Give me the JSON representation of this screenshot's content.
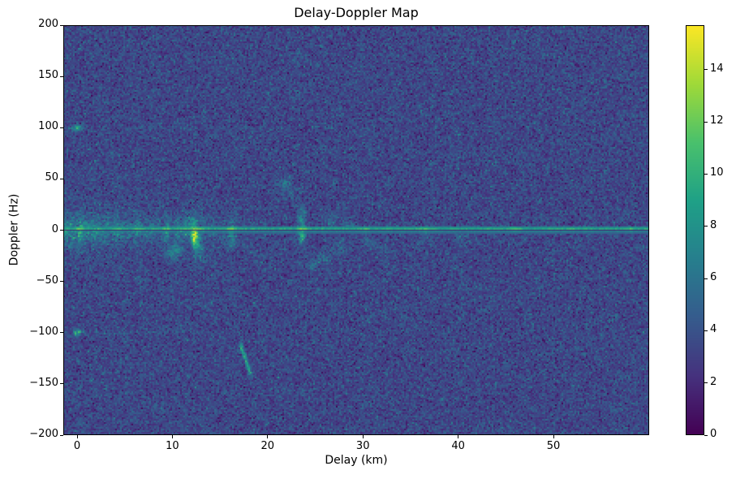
{
  "figure": {
    "background": "#ffffff"
  },
  "chart_data": {
    "type": "heatmap",
    "title": "Delay-Doppler Map",
    "xlabel": "Delay (km)",
    "ylabel": "Doppler (Hz)",
    "xlim": [
      -1.45,
      60.05
    ],
    "ylim": [
      -200,
      200
    ],
    "x_ticks": [
      {
        "v": 0,
        "label": "0"
      },
      {
        "v": 10,
        "label": "10"
      },
      {
        "v": 20,
        "label": "20"
      },
      {
        "v": 30,
        "label": "30"
      },
      {
        "v": 40,
        "label": "40"
      },
      {
        "v": 50,
        "label": "50"
      }
    ],
    "y_ticks": [
      {
        "v": 200,
        "label": "200"
      },
      {
        "v": 150,
        "label": "150"
      },
      {
        "v": 100,
        "label": "100"
      },
      {
        "v": 50,
        "label": "50"
      },
      {
        "v": 0,
        "label": "0"
      },
      {
        "v": -50,
        "label": "−50"
      },
      {
        "v": -100,
        "label": "−100"
      },
      {
        "v": -150,
        "label": "−150"
      },
      {
        "v": -200,
        "label": "−200"
      }
    ],
    "colormap": {
      "name": "viridis",
      "stops": [
        "#440154",
        "#46327e",
        "#365c8d",
        "#277f8e",
        "#1fa187",
        "#4ac16d",
        "#a0da39",
        "#fde725"
      ]
    },
    "colorbar": {
      "vmin": 0,
      "vmax": 15.7,
      "ticks": [
        {
          "v": 0,
          "label": "0"
        },
        {
          "v": 2,
          "label": "2"
        },
        {
          "v": 4,
          "label": "4"
        },
        {
          "v": 6,
          "label": "6"
        },
        {
          "v": 8,
          "label": "8"
        },
        {
          "v": 10,
          "label": "10"
        },
        {
          "v": 12,
          "label": "12"
        },
        {
          "v": 14,
          "label": "14"
        }
      ]
    },
    "grid": {
      "cols": 361,
      "rows": 253,
      "seed": 1337
    },
    "noise": {
      "mean": 3.35,
      "std": 1.0,
      "speckle_prob": 0.05,
      "speckle_max": 2.3
    },
    "features": {
      "band": {
        "delay_max": 20,
        "amp": 4.6,
        "delay_decay": 9,
        "doppler_sigma": 13,
        "power": 1.3
      },
      "streaks": {
        "delay_sigma": 0.22,
        "doppler_sigma": 11,
        "items": [
          {
            "d": 0.4,
            "amp": 2.5
          },
          {
            "d": 2.1,
            "amp": 1.8
          },
          {
            "d": 4.1,
            "amp": 2.2
          },
          {
            "d": 6.3,
            "amp": 2.8
          },
          {
            "d": 7.7,
            "amp": 1.6
          },
          {
            "d": 9.4,
            "amp": 3.2
          },
          {
            "d": 10.6,
            "amp": 2.6
          },
          {
            "d": 11.3,
            "amp": 3.0
          },
          {
            "d": 12.3,
            "amp": 4.5
          },
          {
            "d": 13.1,
            "amp": 2.6
          },
          {
            "d": 14.3,
            "amp": 1.6
          },
          {
            "d": 16.2,
            "amp": 3.6
          },
          {
            "d": 23.6,
            "amp": 2.8
          }
        ]
      },
      "zero_line": {
        "notch_halfwidth": 0.8,
        "notch_value": 1.2,
        "pos_width": 4.5,
        "pos_base": 9.5,
        "neg_width": 4.5,
        "neg_base": 7.0,
        "boost_spots": [
          [
            0.3,
            3.5
          ],
          [
            4.1,
            1.5
          ],
          [
            6.3,
            1.5
          ],
          [
            9.4,
            2.0
          ],
          [
            11.3,
            2.0
          ],
          [
            12.3,
            3.5
          ],
          [
            13.1,
            2.0
          ],
          [
            16.2,
            3.8
          ],
          [
            23.6,
            3.8
          ],
          [
            30.2,
            1.5
          ],
          [
            36.5,
            1.5
          ],
          [
            45.8,
            2.2
          ],
          [
            52.0,
            1.2
          ],
          [
            58.0,
            1.5
          ]
        ],
        "boost_sigma": 0.35,
        "boost_jitter": 1.3
      },
      "blobs": [
        {
          "d": 0.0,
          "f": 100,
          "amp": 6.5,
          "sd": 0.3,
          "sf": 2.2
        },
        {
          "d": 0.0,
          "f": -100,
          "amp": 6.5,
          "sd": 0.3,
          "sf": 2.2
        },
        {
          "d": 12.35,
          "f": -7,
          "amp": 10.5,
          "sd": 0.28,
          "sf": 5
        },
        {
          "d": 12.6,
          "f": -17,
          "amp": 4.5,
          "sd": 0.3,
          "sf": 4
        },
        {
          "d": 11.9,
          "f": 6,
          "amp": 3.0,
          "sd": 0.4,
          "sf": 5
        },
        {
          "d": 9.9,
          "f": -24,
          "amp": 2.8,
          "sd": 0.5,
          "sf": 4
        },
        {
          "d": 12.9,
          "f": -27,
          "amp": 2.2,
          "sd": 0.5,
          "sf": 3.5
        },
        {
          "d": 10.3,
          "f": -18,
          "amp": 2.5,
          "sd": 0.4,
          "sf": 4
        },
        {
          "d": 16.2,
          "f": -12,
          "amp": 2.0,
          "sd": 0.3,
          "sf": 6
        },
        {
          "d": 23.6,
          "f": -6,
          "amp": 5.0,
          "sd": 0.25,
          "sf": 5
        },
        {
          "d": 23.6,
          "f": 12,
          "amp": 2.5,
          "sd": 0.3,
          "sf": 9
        },
        {
          "d": 21.9,
          "f": 46,
          "amp": 2.6,
          "sd": 0.5,
          "sf": 4
        },
        {
          "d": 22.4,
          "f": 36,
          "amp": 1.7,
          "sd": 0.45,
          "sf": 3.5
        },
        {
          "d": 25.9,
          "f": -27,
          "amp": 2.1,
          "sd": 0.6,
          "sf": 4
        },
        {
          "d": 27.4,
          "f": -17,
          "amp": 1.9,
          "sd": 0.5,
          "sf": 4
        },
        {
          "d": 24.8,
          "f": -33,
          "amp": 1.6,
          "sd": 0.5,
          "sf": 3.5
        },
        {
          "d": 30.6,
          "f": -12,
          "amp": 1.7,
          "sd": 0.5,
          "sf": 4
        },
        {
          "d": 32.0,
          "f": -20,
          "amp": 1.4,
          "sd": 0.6,
          "sf": 4
        },
        {
          "d": 26.5,
          "f": 8,
          "amp": 1.8,
          "sd": 0.5,
          "sf": 5
        },
        {
          "d": 28.5,
          "f": 5,
          "amp": 1.5,
          "sd": 0.5,
          "sf": 4
        },
        {
          "d": 36.8,
          "f": -4,
          "amp": 2.2,
          "sd": 0.4,
          "sf": 4
        },
        {
          "d": 40.2,
          "f": -8,
          "amp": 1.5,
          "sd": 0.5,
          "sf": 4
        }
      ],
      "segments": [
        {
          "d0": 17.1,
          "f0": -110,
          "d1": 18.2,
          "f1": -140,
          "amp": 3.2,
          "n": 14,
          "sd": 0.12,
          "sf": 2.2
        }
      ],
      "faint_lines": [
        {
          "f": 100,
          "amp": 0.55,
          "dmax": 20,
          "sf": 1.4
        },
        {
          "f": -100,
          "amp": 0.55,
          "dmax": 20,
          "sf": 1.4
        }
      ]
    }
  }
}
